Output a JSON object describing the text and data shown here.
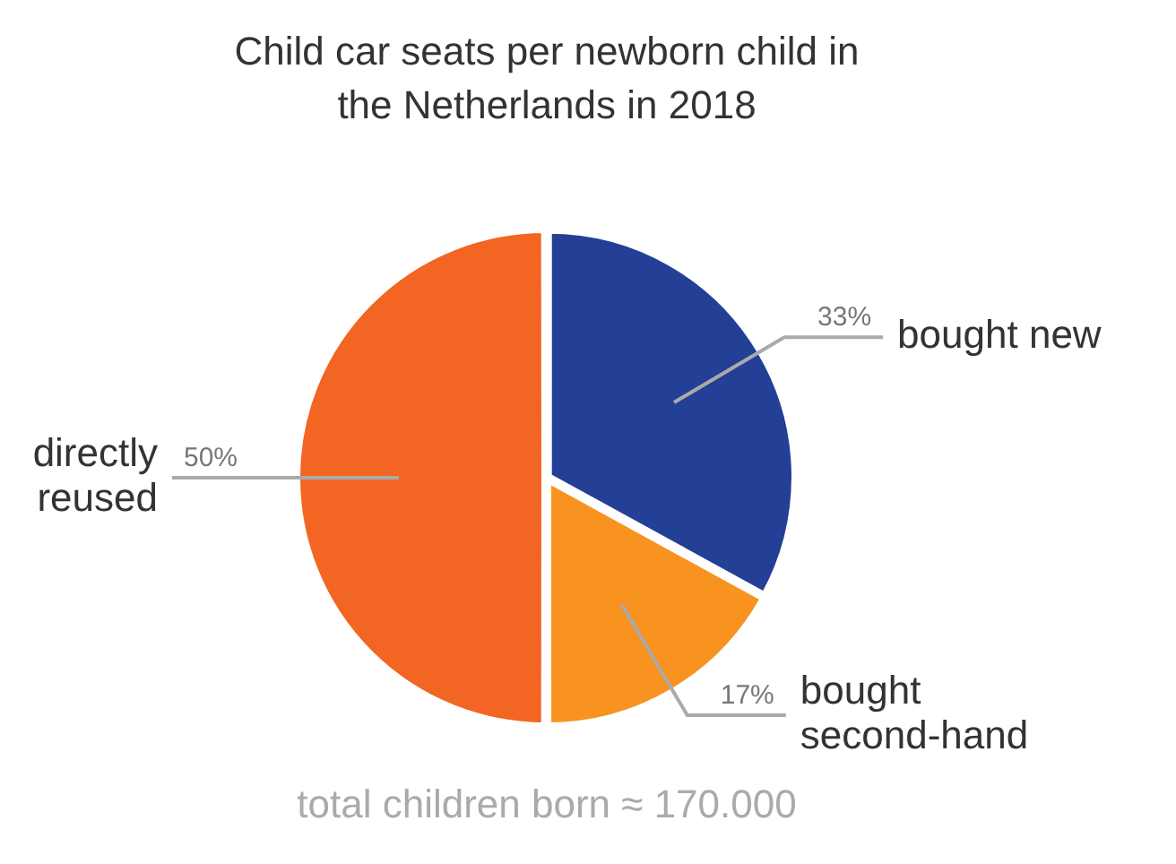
{
  "chart_data": {
    "type": "pie",
    "title": "Child car seats per newborn child in the Netherlands in 2018",
    "categories": [
      "bought new",
      "bought second-hand",
      "directly reused"
    ],
    "values": [
      33,
      17,
      50
    ],
    "colors": [
      "#233f96",
      "#f7931e",
      "#f26522"
    ],
    "value_labels": [
      "33%",
      "17%",
      "50%"
    ],
    "annotations": [
      "total children born ≈ 170.000"
    ],
    "legend": false
  }
}
